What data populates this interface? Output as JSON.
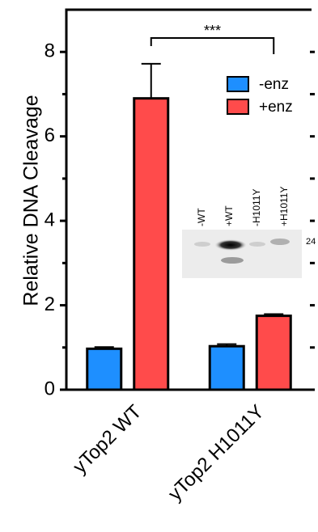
{
  "chart_data": {
    "type": "bar",
    "categories": [
      "yTop2 WT",
      "yTop2 H1011Y"
    ],
    "ylabel": "Relative DNA Cleavage",
    "series": [
      {
        "name": "-enz",
        "color": "#1e8fff",
        "values": [
          0.97,
          1.03
        ],
        "errors": [
          0.04,
          0.05
        ]
      },
      {
        "name": "+enz",
        "color": "#ff4b4b",
        "values": [
          6.9,
          1.75
        ],
        "errors": [
          0.82,
          0.04
        ]
      }
    ],
    "ylim": [
      0,
      9
    ],
    "yticks": [
      0,
      2,
      4,
      6,
      8
    ],
    "significance": "***",
    "legend": "upper right",
    "inset": {
      "lanes": [
        "-WT",
        "+WT",
        "-H1011Y",
        "+H1011Y"
      ],
      "marker": "24"
    }
  }
}
